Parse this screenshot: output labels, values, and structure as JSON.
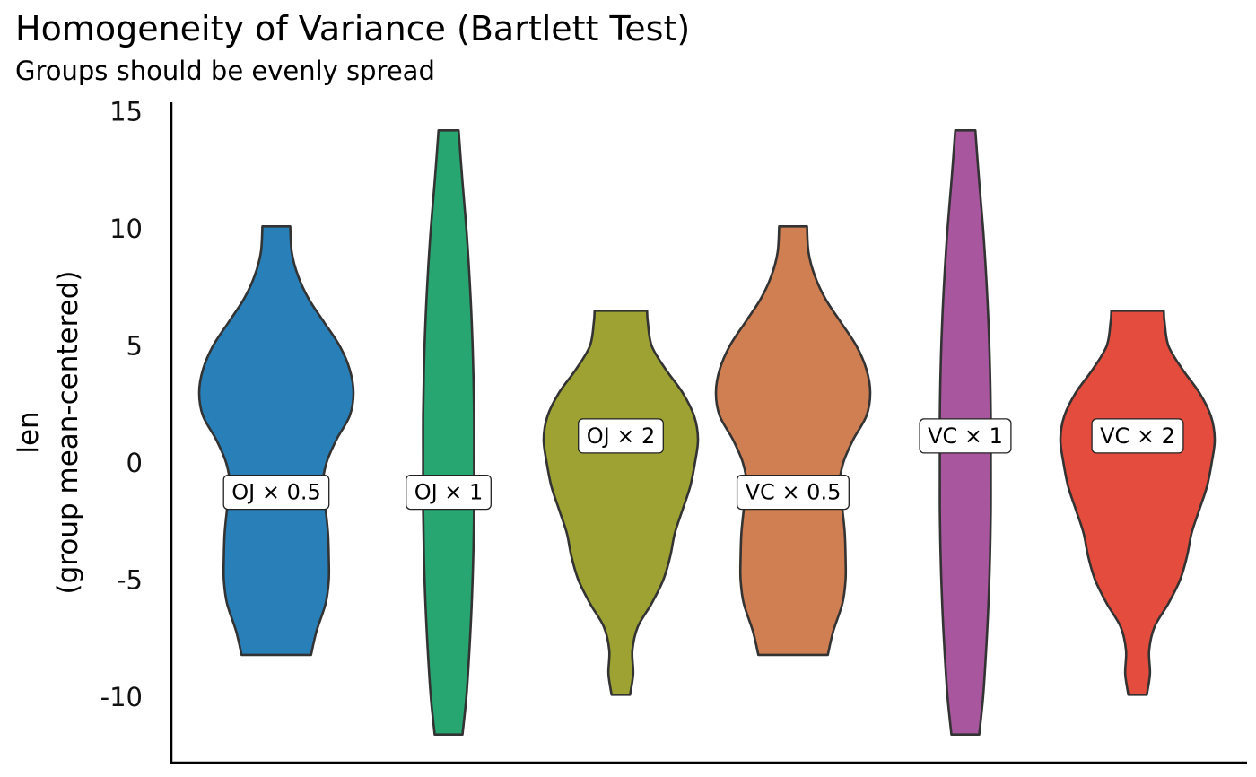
{
  "chart_data": {
    "type": "violin",
    "title": "Homogeneity of Variance (Bartlett Test)",
    "subtitle": "Groups should be evenly spread",
    "xlabel": "",
    "ylabel": [
      "len",
      "(group mean-centered)"
    ],
    "ylim": [
      -12.8,
      15.4
    ],
    "yticks": [
      -10,
      -5,
      0,
      5,
      10,
      15
    ],
    "grid": false,
    "legend": "none",
    "groups": [
      {
        "label": "OJ × 0.5",
        "color": "#2980b9",
        "min": -8.2,
        "max": 10.1,
        "label_y": -1.25,
        "profile": [
          [
            -8.2,
            0.45
          ],
          [
            -7.2,
            0.52
          ],
          [
            -6.0,
            0.64
          ],
          [
            -5.0,
            0.68
          ],
          [
            -4.0,
            0.68
          ],
          [
            -3.0,
            0.67
          ],
          [
            -2.0,
            0.64
          ],
          [
            -1.0,
            0.6
          ],
          [
            0.0,
            0.65
          ],
          [
            1.0,
            0.78
          ],
          [
            2.0,
            0.95
          ],
          [
            3.0,
            1.0
          ],
          [
            4.0,
            0.95
          ],
          [
            5.0,
            0.82
          ],
          [
            6.0,
            0.62
          ],
          [
            7.0,
            0.42
          ],
          [
            8.0,
            0.28
          ],
          [
            9.0,
            0.2
          ],
          [
            10.1,
            0.18
          ]
        ]
      },
      {
        "label": "OJ × 1",
        "color": "#27a672",
        "min": -11.6,
        "max": 14.2,
        "label_y": -1.25,
        "profile": [
          [
            -11.6,
            0.18
          ],
          [
            -10.0,
            0.23
          ],
          [
            -8.0,
            0.27
          ],
          [
            -6.0,
            0.3
          ],
          [
            -4.0,
            0.32
          ],
          [
            -2.0,
            0.33
          ],
          [
            0.0,
            0.33
          ],
          [
            2.0,
            0.33
          ],
          [
            4.0,
            0.32
          ],
          [
            6.0,
            0.3
          ],
          [
            8.0,
            0.27
          ],
          [
            10.0,
            0.23
          ],
          [
            12.0,
            0.18
          ],
          [
            14.2,
            0.13
          ]
        ]
      },
      {
        "label": "OJ × 2",
        "color": "#9da232",
        "min": -9.9,
        "max": 6.5,
        "label_y": 1.15,
        "profile": [
          [
            -9.9,
            0.12
          ],
          [
            -9.0,
            0.16
          ],
          [
            -8.0,
            0.15
          ],
          [
            -7.0,
            0.22
          ],
          [
            -6.0,
            0.4
          ],
          [
            -5.0,
            0.55
          ],
          [
            -4.0,
            0.64
          ],
          [
            -3.0,
            0.7
          ],
          [
            -2.0,
            0.8
          ],
          [
            -1.0,
            0.9
          ],
          [
            0.0,
            0.96
          ],
          [
            1.0,
            1.0
          ],
          [
            2.0,
            0.95
          ],
          [
            3.0,
            0.8
          ],
          [
            4.0,
            0.58
          ],
          [
            5.0,
            0.4
          ],
          [
            6.0,
            0.35
          ],
          [
            6.5,
            0.34
          ]
        ]
      },
      {
        "label": "VC × 0.5",
        "color": "#d07f52",
        "min": -8.2,
        "max": 10.1,
        "label_y": -1.25,
        "profile": [
          [
            -8.2,
            0.45
          ],
          [
            -7.2,
            0.52
          ],
          [
            -6.0,
            0.64
          ],
          [
            -5.0,
            0.68
          ],
          [
            -4.0,
            0.68
          ],
          [
            -3.0,
            0.67
          ],
          [
            -2.0,
            0.64
          ],
          [
            -1.0,
            0.6
          ],
          [
            0.0,
            0.65
          ],
          [
            1.0,
            0.78
          ],
          [
            2.0,
            0.95
          ],
          [
            3.0,
            1.0
          ],
          [
            4.0,
            0.95
          ],
          [
            5.0,
            0.82
          ],
          [
            6.0,
            0.62
          ],
          [
            7.0,
            0.42
          ],
          [
            8.0,
            0.28
          ],
          [
            9.0,
            0.2
          ],
          [
            10.1,
            0.18
          ]
        ]
      },
      {
        "label": "VC × 1",
        "color": "#a8569e",
        "min": -11.6,
        "max": 14.2,
        "label_y": 1.15,
        "profile": [
          [
            -11.6,
            0.18
          ],
          [
            -10.0,
            0.23
          ],
          [
            -8.0,
            0.27
          ],
          [
            -6.0,
            0.3
          ],
          [
            -4.0,
            0.32
          ],
          [
            -2.0,
            0.33
          ],
          [
            0.0,
            0.33
          ],
          [
            2.0,
            0.33
          ],
          [
            4.0,
            0.32
          ],
          [
            6.0,
            0.3
          ],
          [
            8.0,
            0.27
          ],
          [
            10.0,
            0.23
          ],
          [
            12.0,
            0.18
          ],
          [
            14.2,
            0.13
          ]
        ]
      },
      {
        "label": "VC × 2",
        "color": "#e44d3d",
        "min": -9.9,
        "max": 6.5,
        "label_y": 1.15,
        "profile": [
          [
            -9.9,
            0.12
          ],
          [
            -9.0,
            0.16
          ],
          [
            -8.0,
            0.15
          ],
          [
            -7.0,
            0.22
          ],
          [
            -6.0,
            0.4
          ],
          [
            -5.0,
            0.55
          ],
          [
            -4.0,
            0.64
          ],
          [
            -3.0,
            0.7
          ],
          [
            -2.0,
            0.8
          ],
          [
            -1.0,
            0.9
          ],
          [
            0.0,
            0.96
          ],
          [
            1.0,
            1.0
          ],
          [
            2.0,
            0.95
          ],
          [
            3.0,
            0.8
          ],
          [
            4.0,
            0.58
          ],
          [
            5.0,
            0.4
          ],
          [
            6.0,
            0.35
          ],
          [
            6.5,
            0.34
          ]
        ]
      }
    ]
  }
}
